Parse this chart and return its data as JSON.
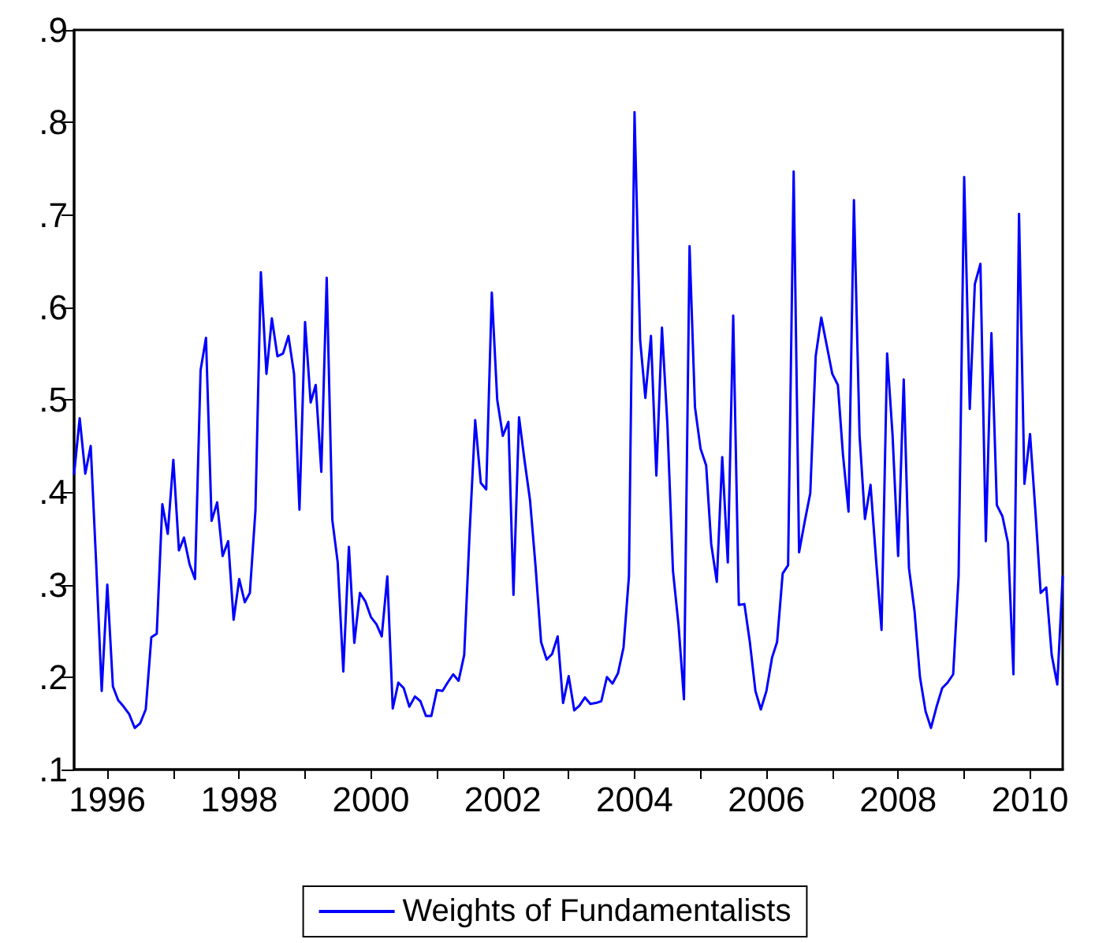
{
  "chart_data": {
    "type": "line",
    "x": [
      "1995-07",
      "1995-08",
      "1995-09",
      "1995-10",
      "1995-11",
      "1995-12",
      "1996-01",
      "1996-02",
      "1996-03",
      "1996-04",
      "1996-05",
      "1996-06",
      "1996-07",
      "1996-08",
      "1996-09",
      "1996-10",
      "1996-11",
      "1996-12",
      "1997-01",
      "1997-02",
      "1997-03",
      "1997-04",
      "1997-05",
      "1997-06",
      "1997-07",
      "1997-08",
      "1997-09",
      "1997-10",
      "1997-11",
      "1997-12",
      "1998-01",
      "1998-02",
      "1998-03",
      "1998-04",
      "1998-05",
      "1998-06",
      "1998-07",
      "1998-08",
      "1998-09",
      "1998-10",
      "1998-11",
      "1998-12",
      "1999-01",
      "1999-02",
      "1999-03",
      "1999-04",
      "1999-05",
      "1999-06",
      "1999-07",
      "1999-08",
      "1999-09",
      "1999-10",
      "1999-11",
      "1999-12",
      "2000-01",
      "2000-02",
      "2000-03",
      "2000-04",
      "2000-05",
      "2000-06",
      "2000-07",
      "2000-08",
      "2000-09",
      "2000-10",
      "2000-11",
      "2000-12",
      "2001-01",
      "2001-02",
      "2001-03",
      "2001-04",
      "2001-05",
      "2001-06",
      "2001-07",
      "2001-08",
      "2001-09",
      "2001-10",
      "2001-11",
      "2001-12",
      "2002-01",
      "2002-02",
      "2002-03",
      "2002-04",
      "2002-05",
      "2002-06",
      "2002-07",
      "2002-08",
      "2002-09",
      "2002-10",
      "2002-11",
      "2002-12",
      "2003-01",
      "2003-02",
      "2003-03",
      "2003-04",
      "2003-05",
      "2003-06",
      "2003-07",
      "2003-08",
      "2003-09",
      "2003-10",
      "2003-11",
      "2003-12",
      "2004-01",
      "2004-02",
      "2004-03",
      "2004-04",
      "2004-05",
      "2004-06",
      "2004-07",
      "2004-08",
      "2004-09",
      "2004-10",
      "2004-11",
      "2004-12",
      "2005-01",
      "2005-02",
      "2005-03",
      "2005-04",
      "2005-05",
      "2005-06",
      "2005-07",
      "2005-08",
      "2005-09",
      "2005-10",
      "2005-11",
      "2005-12",
      "2006-01",
      "2006-02",
      "2006-03",
      "2006-04",
      "2006-05",
      "2006-06",
      "2006-07",
      "2006-08",
      "2006-09",
      "2006-10",
      "2006-11",
      "2006-12",
      "2007-01",
      "2007-02",
      "2007-03",
      "2007-04",
      "2007-05",
      "2007-06",
      "2007-07",
      "2007-08",
      "2007-09",
      "2007-10",
      "2007-11",
      "2007-12",
      "2008-01",
      "2008-02",
      "2008-03",
      "2008-04",
      "2008-05",
      "2008-06",
      "2008-07",
      "2008-08",
      "2008-09",
      "2008-10",
      "2008-11",
      "2008-12",
      "2009-01",
      "2009-02",
      "2009-03",
      "2009-04",
      "2009-05",
      "2009-06",
      "2009-07",
      "2009-08",
      "2009-09",
      "2009-10",
      "2009-11",
      "2009-12",
      "2010-01",
      "2010-02",
      "2010-03",
      "2010-04",
      "2010-05",
      "2010-06",
      "2010-07"
    ],
    "series": [
      {
        "name": "Weights of Fundamentalists",
        "color": "#0000ff",
        "values": [
          0.42,
          0.48,
          0.42,
          0.45,
          0.32,
          0.185,
          0.3,
          0.19,
          0.175,
          0.168,
          0.16,
          0.145,
          0.15,
          0.165,
          0.243,
          0.247,
          0.387,
          0.355,
          0.435,
          0.337,
          0.351,
          0.322,
          0.306,
          0.532,
          0.567,
          0.369,
          0.389,
          0.331,
          0.347,
          0.262,
          0.306,
          0.281,
          0.291,
          0.38,
          0.638,
          0.528,
          0.588,
          0.547,
          0.55,
          0.569,
          0.528,
          0.381,
          0.584,
          0.497,
          0.516,
          0.422,
          0.632,
          0.37,
          0.324,
          0.206,
          0.341,
          0.237,
          0.291,
          0.282,
          0.265,
          0.257,
          0.244,
          0.309,
          0.166,
          0.194,
          0.188,
          0.168,
          0.179,
          0.174,
          0.158,
          0.158,
          0.186,
          0.185,
          0.194,
          0.203,
          0.196,
          0.224,
          0.356,
          0.478,
          0.41,
          0.403,
          0.616,
          0.5,
          0.461,
          0.476,
          0.289,
          0.481,
          0.435,
          0.391,
          0.321,
          0.238,
          0.219,
          0.225,
          0.244,
          0.172,
          0.201,
          0.164,
          0.169,
          0.178,
          0.171,
          0.172,
          0.174,
          0.2,
          0.193,
          0.204,
          0.232,
          0.309,
          0.811,
          0.565,
          0.502,
          0.569,
          0.418,
          0.578,
          0.474,
          0.315,
          0.256,
          0.176,
          0.666,
          0.492,
          0.447,
          0.429,
          0.344,
          0.303,
          0.438,
          0.324,
          0.591,
          0.278,
          0.279,
          0.238,
          0.185,
          0.165,
          0.185,
          0.221,
          0.238,
          0.312,
          0.321,
          0.747,
          0.335,
          0.368,
          0.399,
          0.547,
          0.589,
          0.559,
          0.528,
          0.516,
          0.441,
          0.379,
          0.716,
          0.462,
          0.371,
          0.408,
          0.326,
          0.251,
          0.55,
          0.462,
          0.331,
          0.522,
          0.318,
          0.271,
          0.2,
          0.163,
          0.145,
          0.168,
          0.188,
          0.194,
          0.203,
          0.309,
          0.741,
          0.49,
          0.625,
          0.647,
          0.347,
          0.572,
          0.386,
          0.374,
          0.345,
          0.203,
          0.701,
          0.409,
          0.463,
          0.376,
          0.291,
          0.297,
          0.224,
          0.192,
          0.309
        ]
      }
    ],
    "xlim": [
      "1995-07",
      "2010-07"
    ],
    "xticks": [
      {
        "value": "1996",
        "label": "1996"
      },
      {
        "value": "1997",
        "label": null
      },
      {
        "value": "1998",
        "label": "1998"
      },
      {
        "value": "1999",
        "label": null
      },
      {
        "value": "2000",
        "label": "2000"
      },
      {
        "value": "2001",
        "label": null
      },
      {
        "value": "2002",
        "label": "2002"
      },
      {
        "value": "2003",
        "label": null
      },
      {
        "value": "2004",
        "label": "2004"
      },
      {
        "value": "2005",
        "label": null
      },
      {
        "value": "2006",
        "label": "2006"
      },
      {
        "value": "2007",
        "label": null
      },
      {
        "value": "2008",
        "label": "2008"
      },
      {
        "value": "2009",
        "label": null
      },
      {
        "value": "2010",
        "label": "2010"
      }
    ],
    "ylim": [
      0.1,
      0.9
    ],
    "yticks": [
      {
        "value": 0.1,
        "label": ".1"
      },
      {
        "value": 0.2,
        "label": ".2"
      },
      {
        "value": 0.3,
        "label": ".3"
      },
      {
        "value": 0.4,
        "label": ".4"
      },
      {
        "value": 0.5,
        "label": ".5"
      },
      {
        "value": 0.6,
        "label": ".6"
      },
      {
        "value": 0.7,
        "label": ".7"
      },
      {
        "value": 0.8,
        "label": ".8"
      },
      {
        "value": 0.9,
        "label": ".9"
      }
    ],
    "grid": false,
    "legend": "bottom",
    "marker": "none",
    "line_style": "solid"
  }
}
